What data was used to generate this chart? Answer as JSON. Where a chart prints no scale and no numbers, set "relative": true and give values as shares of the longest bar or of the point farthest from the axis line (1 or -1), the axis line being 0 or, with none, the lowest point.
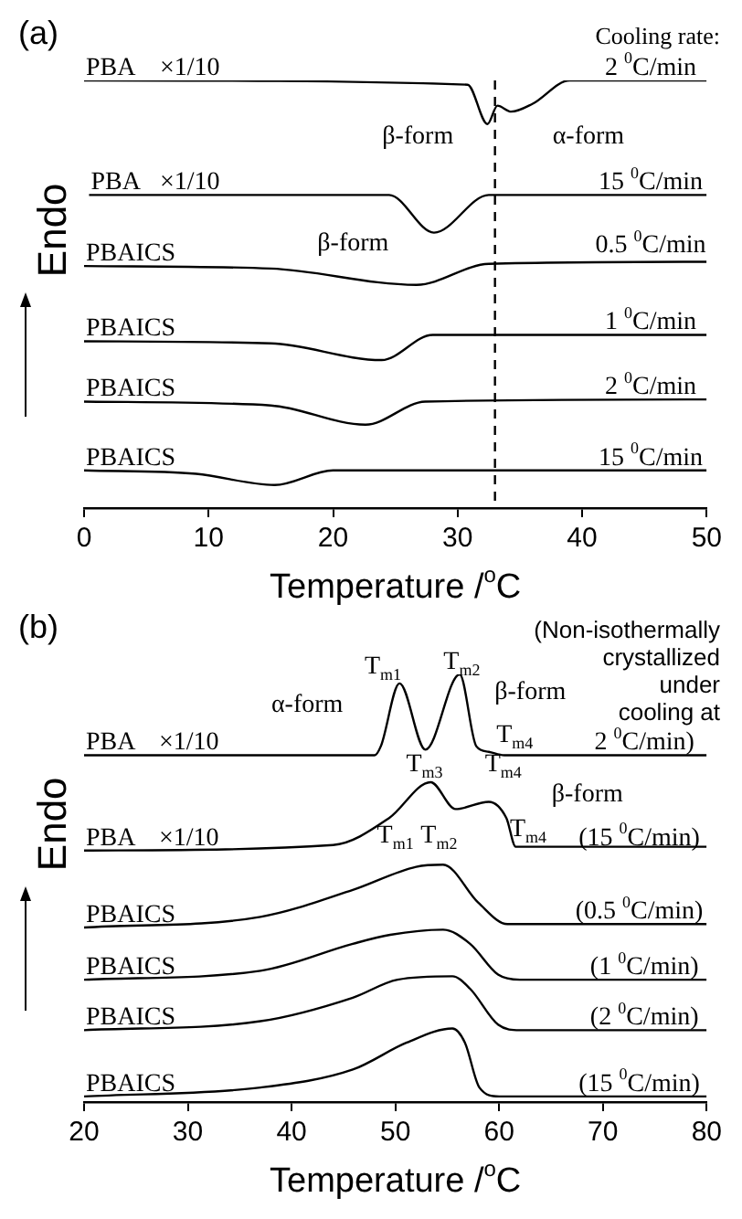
{
  "chart_data": [
    {
      "type": "line",
      "title": "(a)",
      "xlabel": "Temperature /$^{o}$C",
      "ylabel": "Endo",
      "relative": true,
      "xlim": [
        0,
        50
      ],
      "xticks": [
        0,
        10,
        20,
        30,
        40,
        50
      ],
      "grid": false,
      "legend": false,
      "marker": "none",
      "line_style": "solid",
      "series": [
        {
          "name": "PBA",
          "color": "#000000",
          "x": [
            0,
            30.8,
            32.4,
            33.2,
            34.3,
            36,
            39,
            50
          ],
          "values": [
            1.0,
            0.99,
            0.898,
            0.941,
            0.927,
            0.945,
            1.0,
            1.0
          ]
        },
        {
          "name": "PBA",
          "color": "#000000",
          "x": [
            0.4,
            24.5,
            28.1,
            32.5,
            50
          ],
          "values": [
            0.732,
            0.732,
            0.644,
            0.732,
            0.732
          ]
        },
        {
          "name": "PBAICS",
          "color": "#000000",
          "x": [
            0,
            15,
            26.7,
            32.5,
            50
          ],
          "values": [
            0.566,
            0.56,
            0.522,
            0.571,
            0.576
          ]
        },
        {
          "name": "PBAICS",
          "color": "#000000",
          "x": [
            0,
            15,
            23.9,
            28,
            50
          ],
          "values": [
            0.39,
            0.385,
            0.346,
            0.405,
            0.405
          ]
        },
        {
          "name": "PBAICS",
          "color": "#000000",
          "x": [
            0,
            15,
            22.6,
            27.4,
            50
          ],
          "values": [
            0.249,
            0.24,
            0.195,
            0.249,
            0.254
          ]
        },
        {
          "name": "PBAICS",
          "color": "#000000",
          "x": [
            0,
            9,
            15.3,
            20,
            50
          ],
          "values": [
            0.088,
            0.08,
            0.054,
            0.088,
            0.088
          ]
        }
      ],
      "ref_lines": [
        {
          "axis": "x",
          "value": 33,
          "color": "#000000",
          "line_style": "dashed"
        }
      ],
      "annotations": [
        "Cooling rate:",
        {
          "text": "×1/10",
          "x": 8.5,
          "y": 1.0
        },
        {
          "text": "×1/10",
          "x": 8.5,
          "y": 0.732
        },
        "β-form",
        "α-form",
        "β-form",
        {
          "text": "2 $^{0}$C/min",
          "x": 45.5,
          "y": 1.0
        },
        {
          "text": "15 $^{0}$C/min",
          "x": 45.5,
          "y": 0.732
        },
        {
          "text": "0.5 $^{0}$C/min",
          "x": 45.5,
          "y": 0.585
        },
        {
          "text": "1 $^{0}$C/min",
          "x": 45.5,
          "y": 0.405
        },
        {
          "text": "2 $^{0}$C/min",
          "x": 45.5,
          "y": 0.254
        },
        {
          "text": "15 $^{0}$C/min",
          "x": 45.5,
          "y": 0.088
        }
      ]
    },
    {
      "type": "line",
      "title": "(b)",
      "xlabel": "Temperature /$^{o}$C",
      "ylabel": "Endo",
      "relative": true,
      "xlim": [
        20,
        80
      ],
      "xticks": [
        20,
        30,
        40,
        50,
        60,
        70,
        80
      ],
      "grid": false,
      "legend": false,
      "marker": "none",
      "line_style": "solid",
      "series": [
        {
          "name": "PBA",
          "color": "#000000",
          "x": [
            20,
            48,
            48.6,
            50.4,
            52.9,
            56.2,
            57.8,
            59,
            60.5,
            80
          ],
          "values": [
            0.811,
            0.811,
            0.832,
            0.979,
            0.824,
            1.0,
            0.832,
            0.819,
            0.811,
            0.811
          ]
        },
        {
          "name": "PBA",
          "color": "#000000",
          "x": [
            20,
            44,
            49.4,
            53.4,
            55.8,
            59,
            60.7,
            61.6,
            80
          ],
          "values": [
            0.588,
            0.601,
            0.664,
            0.748,
            0.685,
            0.702,
            0.664,
            0.597,
            0.597
          ]
        },
        {
          "name": "PBAICS",
          "color": "#000000",
          "x": [
            20,
            37,
            45.9,
            52,
            54.6,
            58,
            60.8,
            80
          ],
          "values": [
            0.408,
            0.433,
            0.496,
            0.55,
            0.555,
            0.466,
            0.416,
            0.416
          ]
        },
        {
          "name": "PBAICS",
          "color": "#000000",
          "x": [
            20,
            37,
            45.9,
            49.5,
            54.6,
            57.2,
            59.9,
            62,
            80
          ],
          "values": [
            0.286,
            0.307,
            0.37,
            0.391,
            0.403,
            0.37,
            0.298,
            0.286,
            0.286
          ]
        },
        {
          "name": "PBAICS",
          "color": "#000000",
          "x": [
            20,
            37,
            45.9,
            50.2,
            55.5,
            57.2,
            59.9,
            62,
            80
          ],
          "values": [
            0.168,
            0.189,
            0.244,
            0.286,
            0.294,
            0.265,
            0.181,
            0.168,
            0.168
          ]
        },
        {
          "name": "PBAICS",
          "color": "#000000",
          "x": [
            20,
            37,
            45.9,
            51.1,
            55.5,
            56.7,
            58.1,
            60,
            80
          ],
          "values": [
            0.013,
            0.034,
            0.076,
            0.139,
            0.172,
            0.139,
            0.034,
            0.013,
            0.013
          ]
        }
      ],
      "annotations": [
        "(Non-isothermally\ncrystallized\nunder\ncooling at",
        {
          "text": "×1/10",
          "x": 30.1,
          "y": 0.811
        },
        {
          "text": "×1/10",
          "x": 30.1,
          "y": 0.588
        },
        "T$_{m1}$",
        {
          "text": "T$_{m2}$",
          "x": 56.4,
          "y": 1.0
        },
        "α-form",
        "β-form",
        {
          "text": "T$_{m4}$",
          "x": 61.5,
          "y": 0.83
        },
        {
          "text": "T$_{m3}$",
          "x": 52.8,
          "y": 0.76
        },
        "T$_{m4}$",
        "β-form",
        "T$_{m1}$",
        "T$_{m2}$",
        {
          "text": "T$_{m4}$",
          "x": 62.8,
          "y": 0.61
        },
        {
          "text": "2 $^{0}$C/min)",
          "x": 74,
          "y": 0.811
        },
        {
          "text": "(15 $^{0}$C/min)",
          "x": 73.5,
          "y": 0.588
        },
        {
          "text": "(0.5 $^{0}$C/min)",
          "x": 73.5,
          "y": 0.416
        },
        {
          "text": "(1 $^{0}$C/min)",
          "x": 74,
          "y": 0.286
        },
        {
          "text": "(2 $^{0}$C/min)",
          "x": 74,
          "y": 0.168
        },
        {
          "text": "(15 $^{0}$C/min)",
          "x": 73.5,
          "y": 0.013
        }
      ]
    }
  ]
}
